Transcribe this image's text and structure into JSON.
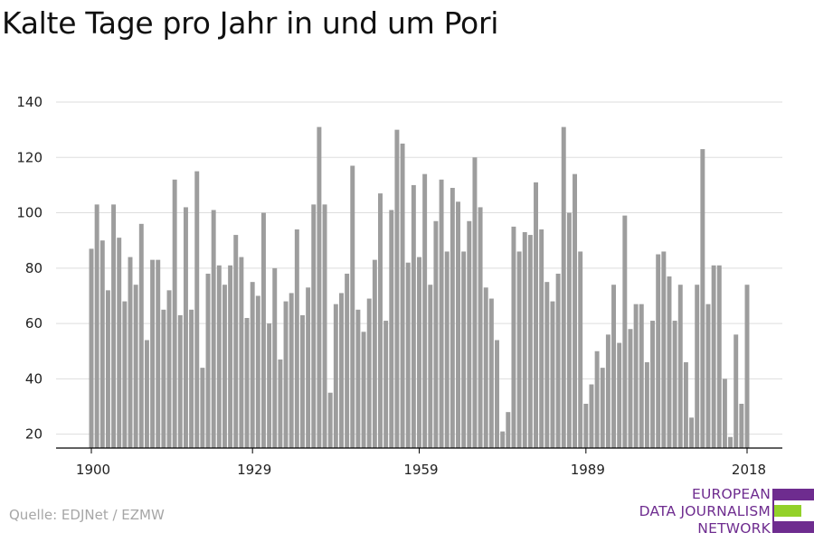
{
  "title": "Kalte Tage pro Jahr in und um Pori",
  "source": "Quelle: EDJNet / EZMW",
  "logo": {
    "line1": "EUROPEAN",
    "line2": "DATA JOURNALISM",
    "line3": "NETWORK",
    "colors": {
      "purple": "#6e2c8f",
      "green": "#93d12a"
    }
  },
  "colors": {
    "bar": "#9d9d9d",
    "grid": "#dddddd",
    "axis": "#000000"
  },
  "chart_data": {
    "type": "bar",
    "title": "Kalte Tage pro Jahr in und um Pori",
    "xlabel": "",
    "ylabel": "",
    "ylim": [
      15,
      140
    ],
    "yticks": [
      20,
      40,
      60,
      80,
      100,
      120,
      140
    ],
    "xticks": [
      1900,
      1929,
      1959,
      1989,
      2018
    ],
    "grid": true,
    "x_start": 1900,
    "x_end": 2018,
    "values": [
      87,
      103,
      90,
      72,
      103,
      91,
      68,
      84,
      74,
      96,
      54,
      83,
      83,
      65,
      72,
      112,
      63,
      102,
      65,
      115,
      44,
      78,
      101,
      81,
      74,
      81,
      92,
      84,
      62,
      75,
      70,
      100,
      60,
      80,
      47,
      68,
      71,
      94,
      63,
      73,
      103,
      131,
      103,
      35,
      67,
      71,
      78,
      117,
      65,
      57,
      69,
      83,
      107,
      61,
      101,
      130,
      125,
      82,
      110,
      84,
      114,
      74,
      97,
      112,
      86,
      109,
      104,
      86,
      97,
      120,
      102,
      73,
      69,
      54,
      21,
      28,
      95,
      86,
      93,
      92,
      111,
      94,
      75,
      68,
      78,
      131,
      100,
      114,
      86,
      31,
      38,
      50,
      44,
      56,
      74,
      53,
      99,
      58,
      67,
      67,
      46,
      61,
      85,
      86,
      77,
      61,
      74,
      46,
      26,
      74,
      123,
      67,
      81,
      81,
      40,
      19,
      56,
      31,
      74
    ]
  }
}
